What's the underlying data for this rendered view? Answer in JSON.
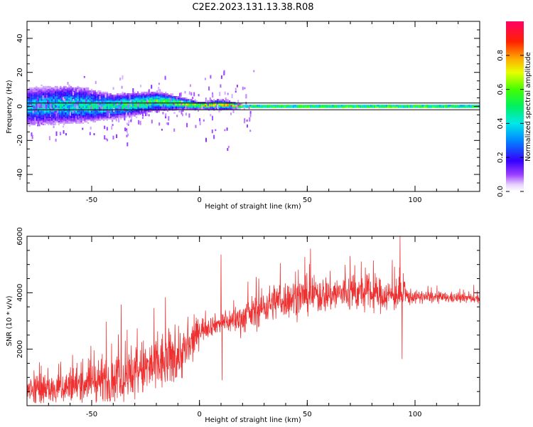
{
  "figure": {
    "title": "C2E2.2023.131.13.38.R08"
  },
  "chart_data": [
    {
      "type": "heatmap",
      "xlabel": "Height of straight line (km)",
      "ylabel": "Frequency (Hz)",
      "xlim": [
        -80,
        130
      ],
      "ylim": [
        -50,
        50
      ],
      "xticks": [
        -50,
        0,
        50,
        100
      ],
      "yticks": [
        -40,
        -20,
        0,
        20,
        40
      ],
      "grid": false,
      "lines": [
        {
          "y": 2,
          "color": "#000000"
        },
        {
          "y": -2,
          "color": "#000000"
        }
      ],
      "colorbar": {
        "label": "Normalized spectral amplitude",
        "range": [
          0,
          1
        ],
        "ticks": [
          "0.0",
          "0.2",
          "0.4",
          "0.6",
          "0.8"
        ],
        "colormap": "gist_rainbow (white → purple → blue → cyan → green → yellow → orange → red → magenta)"
      },
      "signal_profile": [
        {
          "x": -80,
          "center": 0,
          "spread": 6,
          "peak": 0.45
        },
        {
          "x": -60,
          "center": 1,
          "spread": 6,
          "peak": 0.5
        },
        {
          "x": -40,
          "center": 0,
          "spread": 4,
          "peak": 0.55
        },
        {
          "x": -20,
          "center": 3,
          "spread": 3,
          "peak": 0.65
        },
        {
          "x": -10,
          "center": 2,
          "spread": 2,
          "peak": 0.75
        },
        {
          "x": 0,
          "center": 0.5,
          "spread": 1,
          "peak": 0.85
        },
        {
          "x": 10,
          "center": 1,
          "spread": 1.5,
          "peak": 0.85
        },
        {
          "x": 20,
          "center": 0,
          "spread": 0.5,
          "peak": 0.95
        },
        {
          "x": 130,
          "center": 0,
          "spread": 0.5,
          "peak": 0.95
        }
      ]
    },
    {
      "type": "line",
      "xlabel": "Height of straight line (km)",
      "ylabel": "SNR (10 * v/v)",
      "xlim": [
        -80,
        130
      ],
      "ylim": [
        0,
        6000
      ],
      "xticks": [
        -50,
        0,
        50,
        100
      ],
      "yticks": [
        2000,
        4000,
        6000
      ],
      "grid": false,
      "series": [
        {
          "color": "#ee3030",
          "envelope": [
            {
              "x": -80,
              "mean": 500,
              "noise": 400
            },
            {
              "x": -60,
              "mean": 700,
              "noise": 600
            },
            {
              "x": -40,
              "mean": 1000,
              "noise": 800
            },
            {
              "x": -20,
              "mean": 1400,
              "noise": 1000
            },
            {
              "x": -5,
              "mean": 2000,
              "noise": 800
            },
            {
              "x": 0,
              "mean": 2700,
              "noise": 400
            },
            {
              "x": 8,
              "mean": 2900,
              "noise": 300
            },
            {
              "x": 20,
              "mean": 3100,
              "noise": 500
            },
            {
              "x": 35,
              "mean": 3700,
              "noise": 600
            },
            {
              "x": 50,
              "mean": 3900,
              "noise": 600
            },
            {
              "x": 70,
              "mean": 4000,
              "noise": 600
            },
            {
              "x": 90,
              "mean": 3900,
              "noise": 500
            },
            {
              "x": 100,
              "mean": 3850,
              "noise": 200
            },
            {
              "x": 130,
              "mean": 3800,
              "noise": 150
            }
          ],
          "spikes": [
            {
              "x": 10,
              "value": 5350
            },
            {
              "x": 10.5,
              "value": 900
            },
            {
              "x": 93,
              "value": 6000
            },
            {
              "x": 94,
              "value": 1650
            }
          ]
        }
      ]
    }
  ]
}
